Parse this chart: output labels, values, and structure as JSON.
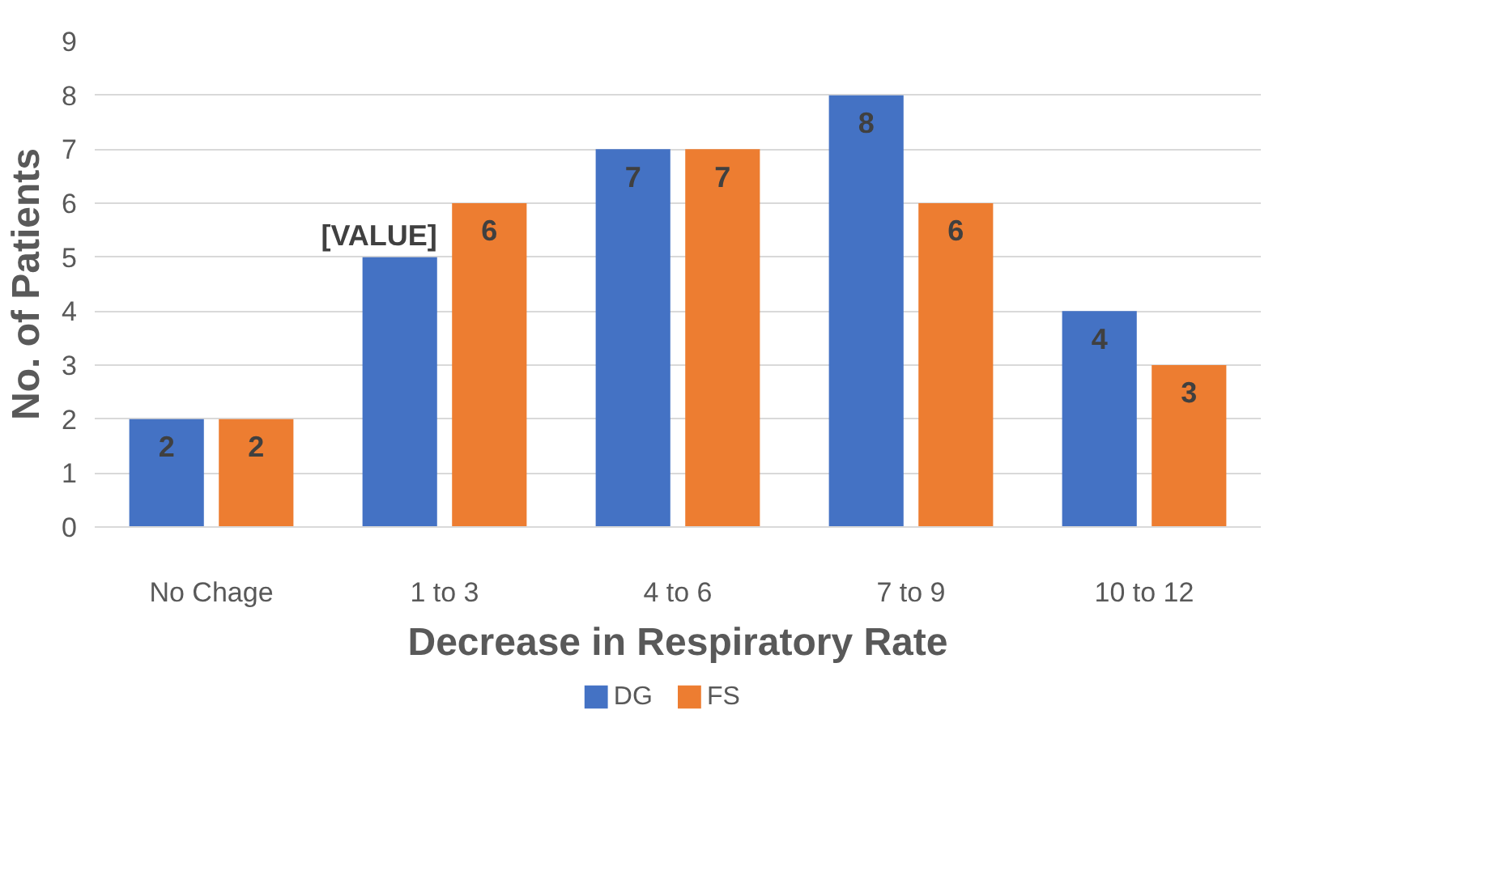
{
  "chart_data": {
    "type": "bar",
    "xlabel": "Decrease in Respiratory Rate",
    "ylabel": "No. of Patients",
    "categories": [
      "No Chage",
      "1 to 3",
      "4 to 6",
      "7 to 9",
      "10 to 12"
    ],
    "series": [
      {
        "name": "DG",
        "color": "#4472c4",
        "values": [
          2,
          5,
          7,
          8,
          4
        ],
        "value_labels": [
          "2",
          "[VALUE]",
          "7",
          "8",
          "4"
        ]
      },
      {
        "name": "FS",
        "color": "#ed7d31",
        "values": [
          2,
          6,
          7,
          6,
          3
        ],
        "value_labels": [
          "2",
          "6",
          "7",
          "6",
          "3"
        ]
      }
    ],
    "ylim": [
      0,
      9
    ],
    "yticks": [
      0,
      1,
      2,
      3,
      4,
      5,
      6,
      7,
      8,
      9
    ],
    "grid": "y",
    "legend": "bottom"
  }
}
